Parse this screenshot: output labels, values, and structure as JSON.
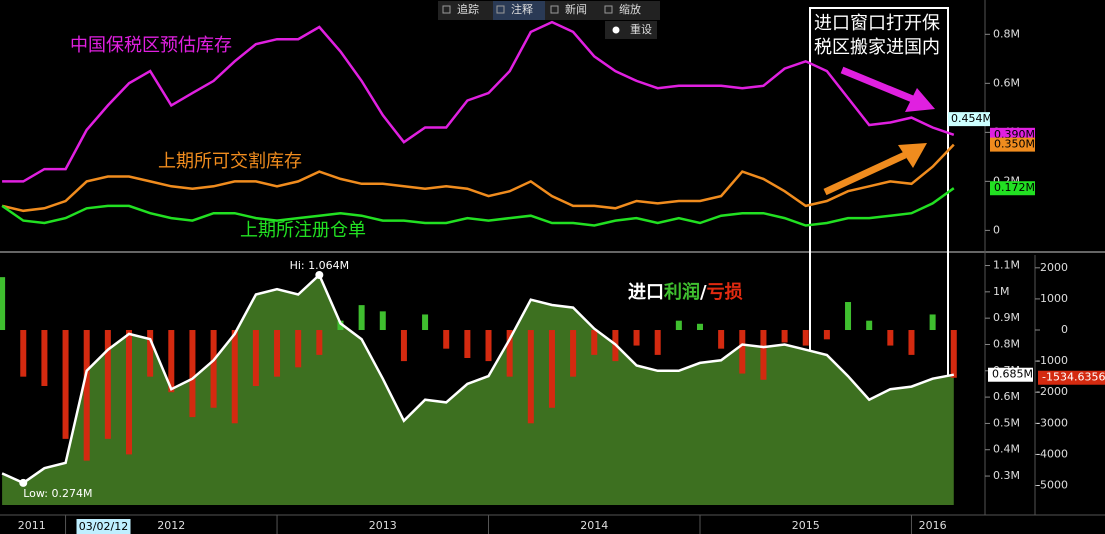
{
  "toolbar": {
    "buttons": [
      "追踪",
      "注释",
      "新闻",
      "缩放"
    ],
    "reset": "重设"
  },
  "chart_data": {
    "type": "panels",
    "x": [
      2011.7,
      2011.8,
      2011.9,
      2012,
      2012.1,
      2012.2,
      2012.3,
      2012.4,
      2012.5,
      2012.6,
      2012.7,
      2012.8,
      2012.9,
      2013,
      2013.1,
      2013.2,
      2013.3,
      2013.4,
      2013.5,
      2013.6,
      2013.7,
      2013.8,
      2013.9,
      2014,
      2014.1,
      2014.2,
      2014.3,
      2014.4,
      2014.5,
      2014.6,
      2014.7,
      2014.8,
      2014.9,
      2015,
      2015.1,
      2015.2,
      2015.3,
      2015.4,
      2015.5,
      2015.6,
      2015.7,
      2015.8,
      2015.9,
      2016,
      2016.1,
      2016.2
    ],
    "xlim": [
      2011.69,
      2016.22
    ],
    "xticks": [
      {
        "value": 2011.84,
        "label": "2011"
      },
      {
        "value": 2012.5,
        "label": "2012"
      },
      {
        "value": 2013.5,
        "label": "2013"
      },
      {
        "value": 2014.5,
        "label": "2014"
      },
      {
        "value": 2015.5,
        "label": "2015"
      },
      {
        "value": 2016.1,
        "label": "2016"
      }
    ],
    "year_boundaries": [
      2012,
      2013,
      2014,
      2015,
      2016
    ],
    "date_marker": {
      "value": 2012.17,
      "label": "03/02/12"
    },
    "annotation": [
      "进口窗口打开保",
      "税区搬家进国内"
    ],
    "panels": [
      {
        "type": "line",
        "ylim": [
          -0.08,
          0.94
        ],
        "yticks": [
          0,
          {
            "value": 0.2,
            "label": "0.2M"
          },
          {
            "value": 0.4,
            "label": "0.4M"
          },
          {
            "value": 0.6,
            "label": "0.6M"
          },
          {
            "value": 0.8,
            "label": "0.8M"
          }
        ],
        "cursor_label": {
          "value": 0.454,
          "label": "0.454M"
        },
        "series": [
          {
            "name": "中国保税区预估库存",
            "color": "#e020e0",
            "end_label": "0.390M",
            "values": [
              0.2,
              0.2,
              0.25,
              0.25,
              0.41,
              0.51,
              0.6,
              0.65,
              0.51,
              0.56,
              0.61,
              0.69,
              0.76,
              0.78,
              0.78,
              0.83,
              0.73,
              0.61,
              0.47,
              0.36,
              0.42,
              0.42,
              0.53,
              0.56,
              0.65,
              0.81,
              0.85,
              0.81,
              0.71,
              0.65,
              0.61,
              0.58,
              0.59,
              0.59,
              0.59,
              0.58,
              0.59,
              0.66,
              0.69,
              0.65,
              0.54,
              0.43,
              0.44,
              0.46,
              0.42,
              0.39
            ]
          },
          {
            "name": "上期所可交割库存",
            "color": "#f08c1e",
            "end_label": "0.350M",
            "values": [
              0.1,
              0.08,
              0.09,
              0.12,
              0.2,
              0.22,
              0.22,
              0.2,
              0.18,
              0.17,
              0.18,
              0.2,
              0.2,
              0.18,
              0.2,
              0.24,
              0.21,
              0.19,
              0.19,
              0.18,
              0.17,
              0.18,
              0.17,
              0.14,
              0.16,
              0.2,
              0.14,
              0.1,
              0.1,
              0.09,
              0.12,
              0.11,
              0.12,
              0.12,
              0.14,
              0.24,
              0.21,
              0.16,
              0.1,
              0.12,
              0.16,
              0.18,
              0.2,
              0.19,
              0.26,
              0.35
            ]
          },
          {
            "name": "上期所注册仓单",
            "color": "#22e022",
            "end_label": "0.172M",
            "values": [
              0.1,
              0.04,
              0.03,
              0.05,
              0.09,
              0.1,
              0.1,
              0.07,
              0.05,
              0.04,
              0.07,
              0.07,
              0.05,
              0.04,
              0.05,
              0.06,
              0.07,
              0.06,
              0.04,
              0.04,
              0.03,
              0.03,
              0.05,
              0.04,
              0.05,
              0.06,
              0.03,
              0.03,
              0.02,
              0.04,
              0.05,
              0.03,
              0.05,
              0.03,
              0.06,
              0.07,
              0.07,
              0.05,
              0.02,
              0.03,
              0.05,
              0.05,
              0.06,
              0.07,
              0.11,
              0.172
            ]
          }
        ]
      },
      {
        "type": "combo",
        "title": [
          "进口",
          "利润",
          "/",
          "亏损"
        ],
        "title_colors": [
          "#ffffff",
          "#3fbf2f",
          "#ffffff",
          "#e02a10"
        ],
        "ylim": [
          0.19,
          1.14
        ],
        "yticks": [
          {
            "value": 0.3,
            "label": "0.3M"
          },
          {
            "value": 0.4,
            "label": "0.4M"
          },
          {
            "value": 0.5,
            "label": "0.5M"
          },
          {
            "value": 0.6,
            "label": "0.6M"
          },
          {
            "value": 0.7,
            "label": "0.7M"
          },
          {
            "value": 0.8,
            "label": "0.8M"
          },
          {
            "value": 0.9,
            "label": "0.9M"
          },
          {
            "value": 1,
            "label": "1M"
          },
          {
            "value": 1.1,
            "label": "1.1M"
          }
        ],
        "y2lim": [
          -5627,
          2412
        ],
        "y2ticks": [
          2000,
          1000,
          0,
          -1000,
          -2000,
          -3000,
          -4000,
          -5000
        ],
        "hi_label": "Hi: 1.064M",
        "low_label": "Low: 0.274M",
        "area": {
          "color": "#3d7020",
          "line_color": "#ffffff",
          "end_label": "0.685M",
          "values": [
            0.31,
            0.274,
            0.33,
            0.35,
            0.7,
            0.78,
            0.84,
            0.82,
            0.63,
            0.67,
            0.74,
            0.84,
            0.99,
            1.01,
            0.99,
            1.064,
            0.88,
            0.82,
            0.67,
            0.51,
            0.59,
            0.58,
            0.65,
            0.68,
            0.82,
            0.97,
            0.95,
            0.94,
            0.86,
            0.8,
            0.72,
            0.7,
            0.7,
            0.73,
            0.74,
            0.8,
            0.79,
            0.8,
            0.78,
            0.76,
            0.68,
            0.59,
            0.63,
            0.64,
            0.67,
            0.685
          ]
        },
        "bars": {
          "axis": "y2",
          "positive_color": "#3fbf2f",
          "negative_color": "#d42a10",
          "end_label": "-1534.6356",
          "values": [
            1700,
            -1500,
            -1800,
            -3500,
            -4200,
            -3500,
            -4000,
            -1500,
            -2000,
            -2800,
            -2500,
            -3000,
            -1800,
            -1500,
            -1200,
            -800,
            300,
            800,
            600,
            -1000,
            500,
            -600,
            -900,
            -1000,
            -1500,
            -3000,
            -2500,
            -1500,
            -800,
            -1000,
            -500,
            -800,
            300,
            200,
            -600,
            -1400,
            -1600,
            -400,
            -500,
            -300,
            900,
            300,
            -500,
            -800,
            500,
            -1534.6356
          ]
        }
      }
    ]
  }
}
